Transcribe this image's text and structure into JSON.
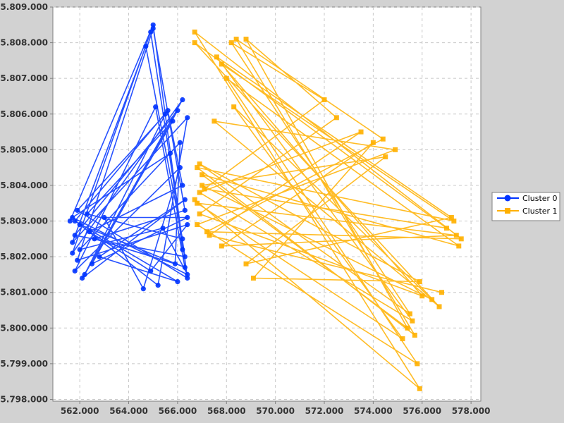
{
  "chart_data": {
    "type": "line",
    "title": "",
    "xlabel": "",
    "ylabel": "",
    "xlim": [
      560.9,
      578.4
    ],
    "ylim": [
      5797.95,
      5809.0
    ],
    "grid": true,
    "legend_placement": "right",
    "x_ticks": [
      562.0,
      564.0,
      566.0,
      568.0,
      570.0,
      572.0,
      574.0,
      576.0,
      578.0
    ],
    "y_ticks": [
      5798.0,
      5799.0,
      5800.0,
      5801.0,
      5802.0,
      5803.0,
      5804.0,
      5805.0,
      5806.0,
      5807.0,
      5808.0,
      5809.0
    ],
    "x_tick_labels": [
      "562.000",
      "564.000",
      "566.000",
      "568.000",
      "570.000",
      "572.000",
      "574.000",
      "576.000",
      "578.000"
    ],
    "y_tick_labels": [
      "5.798.000",
      "5.799.000",
      "5.800.000",
      "5.801.000",
      "5.802.000",
      "5.803.000",
      "5.804.000",
      "5.805.000",
      "5.806.000",
      "5.807.000",
      "5.808.000",
      "5.809.000"
    ],
    "series": [
      {
        "name": "Cluster 0",
        "color": "#0033ff",
        "marker": "circle",
        "points": [
          [
            561.6,
            5803.0
          ],
          [
            565.0,
            5808.5
          ],
          [
            566.4,
            5801.4
          ],
          [
            561.9,
            5803.3
          ],
          [
            565.5,
            5806.0
          ],
          [
            562.2,
            5801.5
          ],
          [
            566.2,
            5806.4
          ],
          [
            561.7,
            5802.1
          ],
          [
            564.9,
            5808.3
          ],
          [
            566.3,
            5802.0
          ],
          [
            561.8,
            5802.6
          ],
          [
            566.0,
            5806.1
          ],
          [
            562.5,
            5801.8
          ],
          [
            566.4,
            5803.1
          ],
          [
            563.0,
            5803.1
          ],
          [
            564.6,
            5801.1
          ],
          [
            566.1,
            5804.5
          ],
          [
            561.8,
            5801.6
          ],
          [
            565.1,
            5806.2
          ],
          [
            566.3,
            5801.7
          ],
          [
            562.0,
            5802.9
          ],
          [
            565.2,
            5801.2
          ],
          [
            566.4,
            5805.9
          ],
          [
            561.7,
            5802.4
          ],
          [
            564.7,
            5807.9
          ],
          [
            566.2,
            5802.5
          ],
          [
            562.3,
            5803.2
          ],
          [
            565.8,
            5805.8
          ],
          [
            562.1,
            5801.4
          ],
          [
            566.3,
            5803.6
          ],
          [
            562.8,
            5802.0
          ],
          [
            566.0,
            5801.3
          ],
          [
            561.8,
            5803.0
          ],
          [
            565.6,
            5806.1
          ],
          [
            566.2,
            5804.0
          ],
          [
            562.4,
            5802.7
          ],
          [
            564.9,
            5801.6
          ],
          [
            566.4,
            5802.9
          ],
          [
            561.9,
            5801.9
          ],
          [
            565.0,
            5808.4
          ],
          [
            566.3,
            5803.3
          ],
          [
            562.6,
            5802.5
          ],
          [
            565.9,
            5801.8
          ],
          [
            566.1,
            5805.2
          ],
          [
            562.0,
            5802.2
          ],
          [
            565.4,
            5802.8
          ],
          [
            566.4,
            5801.5
          ],
          [
            561.7,
            5803.1
          ],
          [
            565.7,
            5804.9
          ],
          [
            566.2,
            5802.2
          ]
        ]
      },
      {
        "name": "Cluster 1",
        "color": "#ffb000",
        "marker": "square",
        "points": [
          [
            566.7,
            5803.6
          ],
          [
            575.9,
            5798.3
          ],
          [
            566.7,
            5808.3
          ],
          [
            577.6,
            5802.5
          ],
          [
            567.2,
            5802.7
          ],
          [
            574.4,
            5805.3
          ],
          [
            568.4,
            5808.1
          ],
          [
            575.7,
            5799.8
          ],
          [
            566.8,
            5804.5
          ],
          [
            577.3,
            5803.0
          ],
          [
            567.8,
            5807.4
          ],
          [
            576.0,
            5800.9
          ],
          [
            566.9,
            5803.2
          ],
          [
            572.5,
            5805.9
          ],
          [
            568.8,
            5808.1
          ],
          [
            575.4,
            5800.0
          ],
          [
            567.0,
            5804.3
          ],
          [
            577.5,
            5802.3
          ],
          [
            568.0,
            5807.0
          ],
          [
            575.8,
            5799.0
          ],
          [
            566.8,
            5802.9
          ],
          [
            574.9,
            5805.0
          ],
          [
            567.5,
            5805.8
          ],
          [
            576.7,
            5800.6
          ],
          [
            566.7,
            5808.0
          ],
          [
            577.0,
            5802.8
          ],
          [
            567.1,
            5803.9
          ],
          [
            572.0,
            5806.4
          ],
          [
            568.2,
            5808.0
          ],
          [
            575.5,
            5800.4
          ],
          [
            566.9,
            5804.6
          ],
          [
            575.9,
            5801.3
          ],
          [
            569.1,
            5801.4
          ],
          [
            574.0,
            5805.2
          ],
          [
            567.8,
            5802.3
          ],
          [
            577.4,
            5802.6
          ],
          [
            566.8,
            5803.5
          ],
          [
            575.2,
            5799.7
          ],
          [
            568.3,
            5806.2
          ],
          [
            576.4,
            5800.8
          ],
          [
            567.0,
            5804.0
          ],
          [
            574.5,
            5804.8
          ],
          [
            568.8,
            5801.8
          ],
          [
            577.2,
            5803.1
          ],
          [
            567.6,
            5807.6
          ],
          [
            575.6,
            5800.2
          ],
          [
            566.9,
            5803.8
          ],
          [
            573.5,
            5805.5
          ],
          [
            567.3,
            5802.6
          ],
          [
            576.8,
            5801.0
          ]
        ]
      }
    ]
  }
}
